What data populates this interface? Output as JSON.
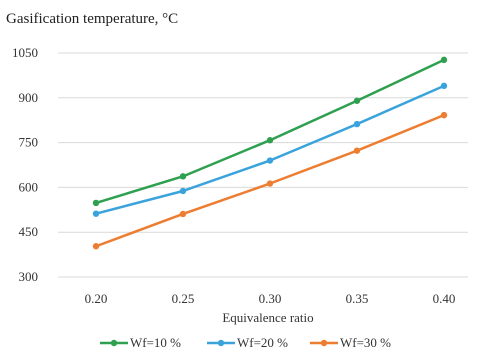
{
  "chart_data": {
    "type": "line",
    "title": "Gasification temperature, °C",
    "xlabel": "Equivalence ratio",
    "ylabel": "",
    "x": [
      "0.20",
      "0.25",
      "0.30",
      "0.35",
      "0.40"
    ],
    "ylim": [
      300,
      1050
    ],
    "yticks": [
      "300",
      "450",
      "600",
      "750",
      "900",
      "1050"
    ],
    "grid": true,
    "legend_position": "bottom",
    "series": [
      {
        "name": "Wf=10 %",
        "color": "#2ea04f",
        "values": [
          548,
          637,
          758,
          890,
          1027
        ]
      },
      {
        "name": "Wf=20 %",
        "color": "#3aa3dc",
        "values": [
          512,
          588,
          690,
          812,
          940
        ]
      },
      {
        "name": "Wf=30 %",
        "color": "#ed7d31",
        "values": [
          403,
          511,
          613,
          723,
          842
        ]
      }
    ]
  }
}
